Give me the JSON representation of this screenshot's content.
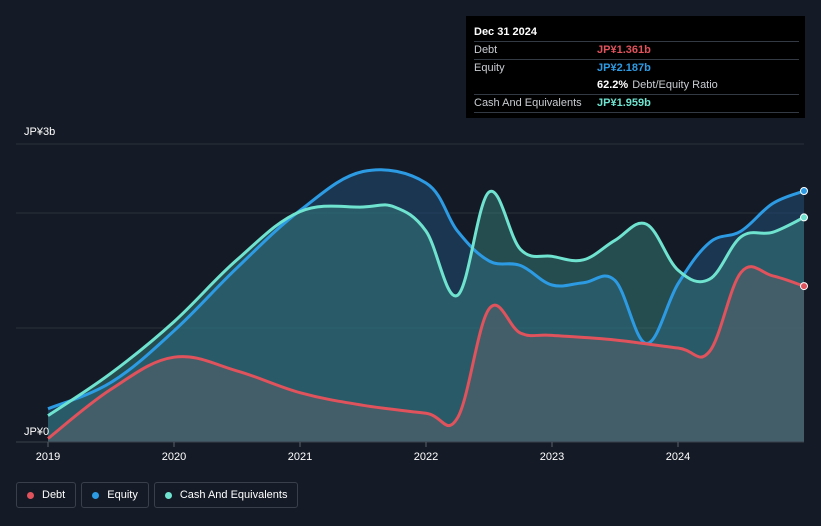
{
  "colors": {
    "debt": "#e0525c",
    "equity": "#2d9be4",
    "cash": "#6fe3cf",
    "grid": "#2a303b",
    "background": "#151b26"
  },
  "tooltip": {
    "date": "Dec 31 2024",
    "debt_label": "Debt",
    "debt_value": "JP¥1.361b",
    "equity_label": "Equity",
    "equity_value": "JP¥2.187b",
    "ratio_value": "62.2%",
    "ratio_label": "Debt/Equity Ratio",
    "cash_label": "Cash And Equivalents",
    "cash_value": "JP¥1.959b"
  },
  "legend": {
    "debt": "Debt",
    "equity": "Equity",
    "cash": "Cash And Equivalents"
  },
  "chart_data": {
    "type": "area",
    "y_top_label": "JP¥3b",
    "y_bottom_label": "JP¥0",
    "ylim": [
      0,
      2.6
    ],
    "xlim": [
      2019.0,
      2025.0
    ],
    "x_ticks": [
      "2019",
      "2020",
      "2021",
      "2022",
      "2023",
      "2024"
    ],
    "grid": true,
    "legend_position": "bottom-left",
    "series": [
      {
        "name": "Debt",
        "key": "debt",
        "x": [
          2019.0,
          2019.5,
          2020.0,
          2020.5,
          2021.0,
          2021.5,
          2022.0,
          2022.25,
          2022.5,
          2022.75,
          2023.0,
          2023.5,
          2024.0,
          2024.25,
          2024.5,
          2024.75,
          2025.0
        ],
        "y": [
          0.03,
          0.46,
          0.74,
          0.62,
          0.43,
          0.32,
          0.25,
          0.21,
          1.16,
          0.95,
          0.93,
          0.89,
          0.82,
          0.79,
          1.48,
          1.45,
          1.36
        ]
      },
      {
        "name": "Equity",
        "key": "equity",
        "x": [
          2019.0,
          2019.5,
          2020.0,
          2020.5,
          2021.0,
          2021.5,
          2022.0,
          2022.25,
          2022.5,
          2022.75,
          2023.0,
          2023.25,
          2023.5,
          2023.75,
          2024.0,
          2024.25,
          2024.5,
          2024.75,
          2025.0
        ],
        "y": [
          0.29,
          0.52,
          0.97,
          1.52,
          2.02,
          2.36,
          2.26,
          1.84,
          1.58,
          1.54,
          1.37,
          1.39,
          1.41,
          0.86,
          1.38,
          1.74,
          1.84,
          2.08,
          2.19
        ]
      },
      {
        "name": "Cash And Equivalents",
        "key": "cash",
        "x": [
          2019.0,
          2019.5,
          2020.0,
          2020.5,
          2021.0,
          2021.5,
          2021.75,
          2022.0,
          2022.25,
          2022.5,
          2022.75,
          2023.0,
          2023.25,
          2023.5,
          2023.75,
          2024.0,
          2024.25,
          2024.5,
          2024.75,
          2025.0
        ],
        "y": [
          0.23,
          0.6,
          1.05,
          1.59,
          2.01,
          2.05,
          2.05,
          1.84,
          1.28,
          2.18,
          1.68,
          1.62,
          1.59,
          1.76,
          1.9,
          1.5,
          1.42,
          1.79,
          1.83,
          1.96
        ]
      }
    ]
  }
}
